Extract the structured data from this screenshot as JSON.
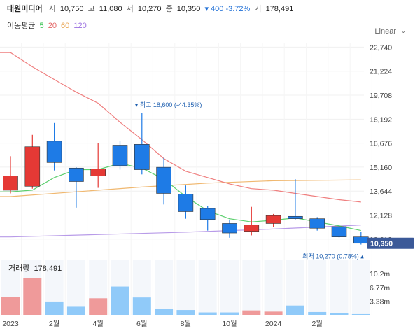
{
  "header": {
    "name": "대원미디어",
    "open_label": "시",
    "open": "10,750",
    "high_label": "고",
    "high": "11,080",
    "low_label": "저",
    "low": "10,270",
    "close_label": "종",
    "close": "10,350",
    "change": "▾ 400 -3.72%",
    "volume": "178,491"
  },
  "ma_legend": {
    "title": "이동평균",
    "items": [
      {
        "label": "5",
        "color": "#2fbf4a"
      },
      {
        "label": "20",
        "color": "#e36363"
      },
      {
        "label": "60",
        "color": "#e9a24d"
      },
      {
        "label": "120",
        "color": "#9a6fe0"
      }
    ]
  },
  "scale_mode": "Linear",
  "colors": {
    "up": "#e53935",
    "down": "#1e7be6",
    "up_vol": "#ef9a9a",
    "down_vol": "#90caf9",
    "price_tag": "#3b5998"
  },
  "annotations": {
    "high": "▾ 최고 18,600 (-44.35%)",
    "low": "최저 10,270 (0.78%) ▴"
  },
  "last_price_tag": "10,350",
  "volume_panel": {
    "title": "거래량",
    "value": "178,491",
    "ticks": [
      {
        "value": 10.2,
        "label": "10.2m"
      },
      {
        "value": 6.77,
        "label": "6.77m"
      },
      {
        "value": 3.38,
        "label": "3.38m"
      }
    ],
    "max": 13.5
  },
  "chart_data": {
    "type": "candlestick",
    "y_ticks": [
      "22,740",
      "21,224",
      "19,708",
      "18,192",
      "16,676",
      "15,160",
      "13,644",
      "12,128",
      "10,612"
    ],
    "ylim": [
      10250,
      22980
    ],
    "x_labels": [
      {
        "index": 0,
        "label": "2023"
      },
      {
        "index": 2,
        "label": "2월"
      },
      {
        "index": 4,
        "label": "4월"
      },
      {
        "index": 6,
        "label": "6월"
      },
      {
        "index": 8,
        "label": "8월"
      },
      {
        "index": 10,
        "label": "10월"
      },
      {
        "index": 12,
        "label": "2024"
      },
      {
        "index": 14,
        "label": "2월"
      }
    ],
    "candles": [
      {
        "open": 13700,
        "high": 15850,
        "low": 13500,
        "close": 14600,
        "volume": 4.5
      },
      {
        "open": 13950,
        "high": 17200,
        "low": 13800,
        "close": 16450,
        "volume": 9.1
      },
      {
        "open": 16800,
        "high": 17950,
        "low": 14950,
        "close": 15450,
        "volume": 3.3
      },
      {
        "open": 15100,
        "high": 15150,
        "low": 12600,
        "close": 14250,
        "volume": 2.0
      },
      {
        "open": 14600,
        "high": 16700,
        "low": 13850,
        "close": 15050,
        "volume": 4.1
      },
      {
        "open": 16550,
        "high": 16800,
        "low": 15000,
        "close": 15250,
        "volume": 7.0
      },
      {
        "open": 16600,
        "high": 18600,
        "low": 14700,
        "close": 15000,
        "volume": 4.3
      },
      {
        "open": 15150,
        "high": 15750,
        "low": 12800,
        "close": 13500,
        "volume": 1.4
      },
      {
        "open": 13450,
        "high": 14000,
        "low": 11900,
        "close": 12350,
        "volume": 1.2
      },
      {
        "open": 12550,
        "high": 12700,
        "low": 11150,
        "close": 11850,
        "volume": 0.6
      },
      {
        "open": 11600,
        "high": 11850,
        "low": 10700,
        "close": 11000,
        "volume": 0.6
      },
      {
        "open": 11100,
        "high": 12650,
        "low": 10850,
        "close": 11500,
        "volume": 1.1
      },
      {
        "open": 11600,
        "high": 12200,
        "low": 11400,
        "close": 12100,
        "volume": 0.8
      },
      {
        "open": 12050,
        "high": 14400,
        "low": 11850,
        "close": 11900,
        "volume": 2.3
      },
      {
        "open": 11900,
        "high": 12000,
        "low": 11150,
        "close": 11300,
        "volume": 0.7
      },
      {
        "open": 11400,
        "high": 11500,
        "low": 10700,
        "close": 10750,
        "volume": 0.5
      },
      {
        "open": 10750,
        "high": 11080,
        "low": 10270,
        "close": 10350,
        "volume": 0.18
      }
    ],
    "ma20": [
      [
        0,
        22400
      ],
      [
        1,
        21500
      ],
      [
        2,
        20700
      ],
      [
        3,
        19900
      ],
      [
        4,
        19200
      ],
      [
        5,
        18000
      ],
      [
        6,
        16900
      ],
      [
        7,
        15700
      ],
      [
        8,
        14900
      ],
      [
        9,
        14500
      ],
      [
        10,
        14100
      ],
      [
        11,
        13800
      ],
      [
        12,
        13700
      ],
      [
        13,
        13500
      ],
      [
        14,
        13300
      ],
      [
        15,
        13100
      ],
      [
        16,
        12950
      ]
    ],
    "ma5": [
      [
        0,
        13600
      ],
      [
        1,
        13700
      ],
      [
        2,
        14500
      ],
      [
        3,
        15000
      ],
      [
        4,
        15000
      ],
      [
        5,
        15400
      ],
      [
        6,
        15100
      ],
      [
        7,
        14400
      ],
      [
        8,
        13300
      ],
      [
        9,
        12400
      ],
      [
        10,
        11900
      ],
      [
        11,
        11700
      ],
      [
        12,
        11800
      ],
      [
        13,
        11950
      ],
      [
        14,
        11700
      ],
      [
        15,
        11450
      ],
      [
        16,
        11150
      ]
    ],
    "ma60": [
      [
        0,
        13300
      ],
      [
        3,
        13600
      ],
      [
        6,
        13900
      ],
      [
        9,
        14150
      ],
      [
        12,
        14300
      ],
      [
        16,
        14350
      ]
    ],
    "ma120": [
      [
        0,
        10750
      ],
      [
        4,
        10900
      ],
      [
        8,
        11050
      ],
      [
        12,
        11250
      ],
      [
        16,
        11500
      ]
    ]
  }
}
